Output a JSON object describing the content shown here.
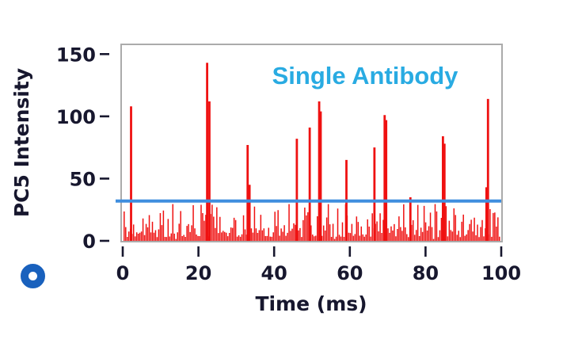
{
  "chart_data": {
    "type": "line",
    "subtype": "time-trace with spikes over noise floor",
    "annotation": "Single Antibody",
    "annotation_color": "#29abe2",
    "xlabel": "Time (ms)",
    "ylabel": "PC5 Intensity",
    "xlim": [
      0,
      100
    ],
    "ylim": [
      0,
      154
    ],
    "xticks": [
      0,
      20,
      40,
      60,
      80,
      100
    ],
    "yticks": [
      0,
      50,
      100,
      150
    ],
    "grid": false,
    "legend_position": "none",
    "signal_color": "#ef1111",
    "axis_text_color": "#17172e",
    "plot_border_color": "#ababab",
    "threshold_line": {
      "value": 32,
      "color": "#3f8ede"
    },
    "noise_floor": {
      "description": "dense random baseline noise below threshold",
      "min": 0,
      "max": 30,
      "samples": 240,
      "seed": 9001
    },
    "spike_events": [
      {
        "t": 2.2,
        "intensity": 108
      },
      {
        "t": 22.3,
        "intensity": 143
      },
      {
        "t": 22.9,
        "intensity": 112
      },
      {
        "t": 33.0,
        "intensity": 77
      },
      {
        "t": 33.5,
        "intensity": 45
      },
      {
        "t": 46.0,
        "intensity": 82
      },
      {
        "t": 49.4,
        "intensity": 91
      },
      {
        "t": 51.9,
        "intensity": 112
      },
      {
        "t": 52.3,
        "intensity": 104
      },
      {
        "t": 59.1,
        "intensity": 65
      },
      {
        "t": 66.5,
        "intensity": 75
      },
      {
        "t": 69.2,
        "intensity": 101
      },
      {
        "t": 69.6,
        "intensity": 97
      },
      {
        "t": 76.0,
        "intensity": 35
      },
      {
        "t": 84.6,
        "intensity": 84
      },
      {
        "t": 85.0,
        "intensity": 78
      },
      {
        "t": 96.1,
        "intensity": 43
      },
      {
        "t": 96.5,
        "intensity": 114
      }
    ]
  },
  "controls": {
    "radio_marker": {
      "state": "selected",
      "color": "#1961bd"
    }
  }
}
